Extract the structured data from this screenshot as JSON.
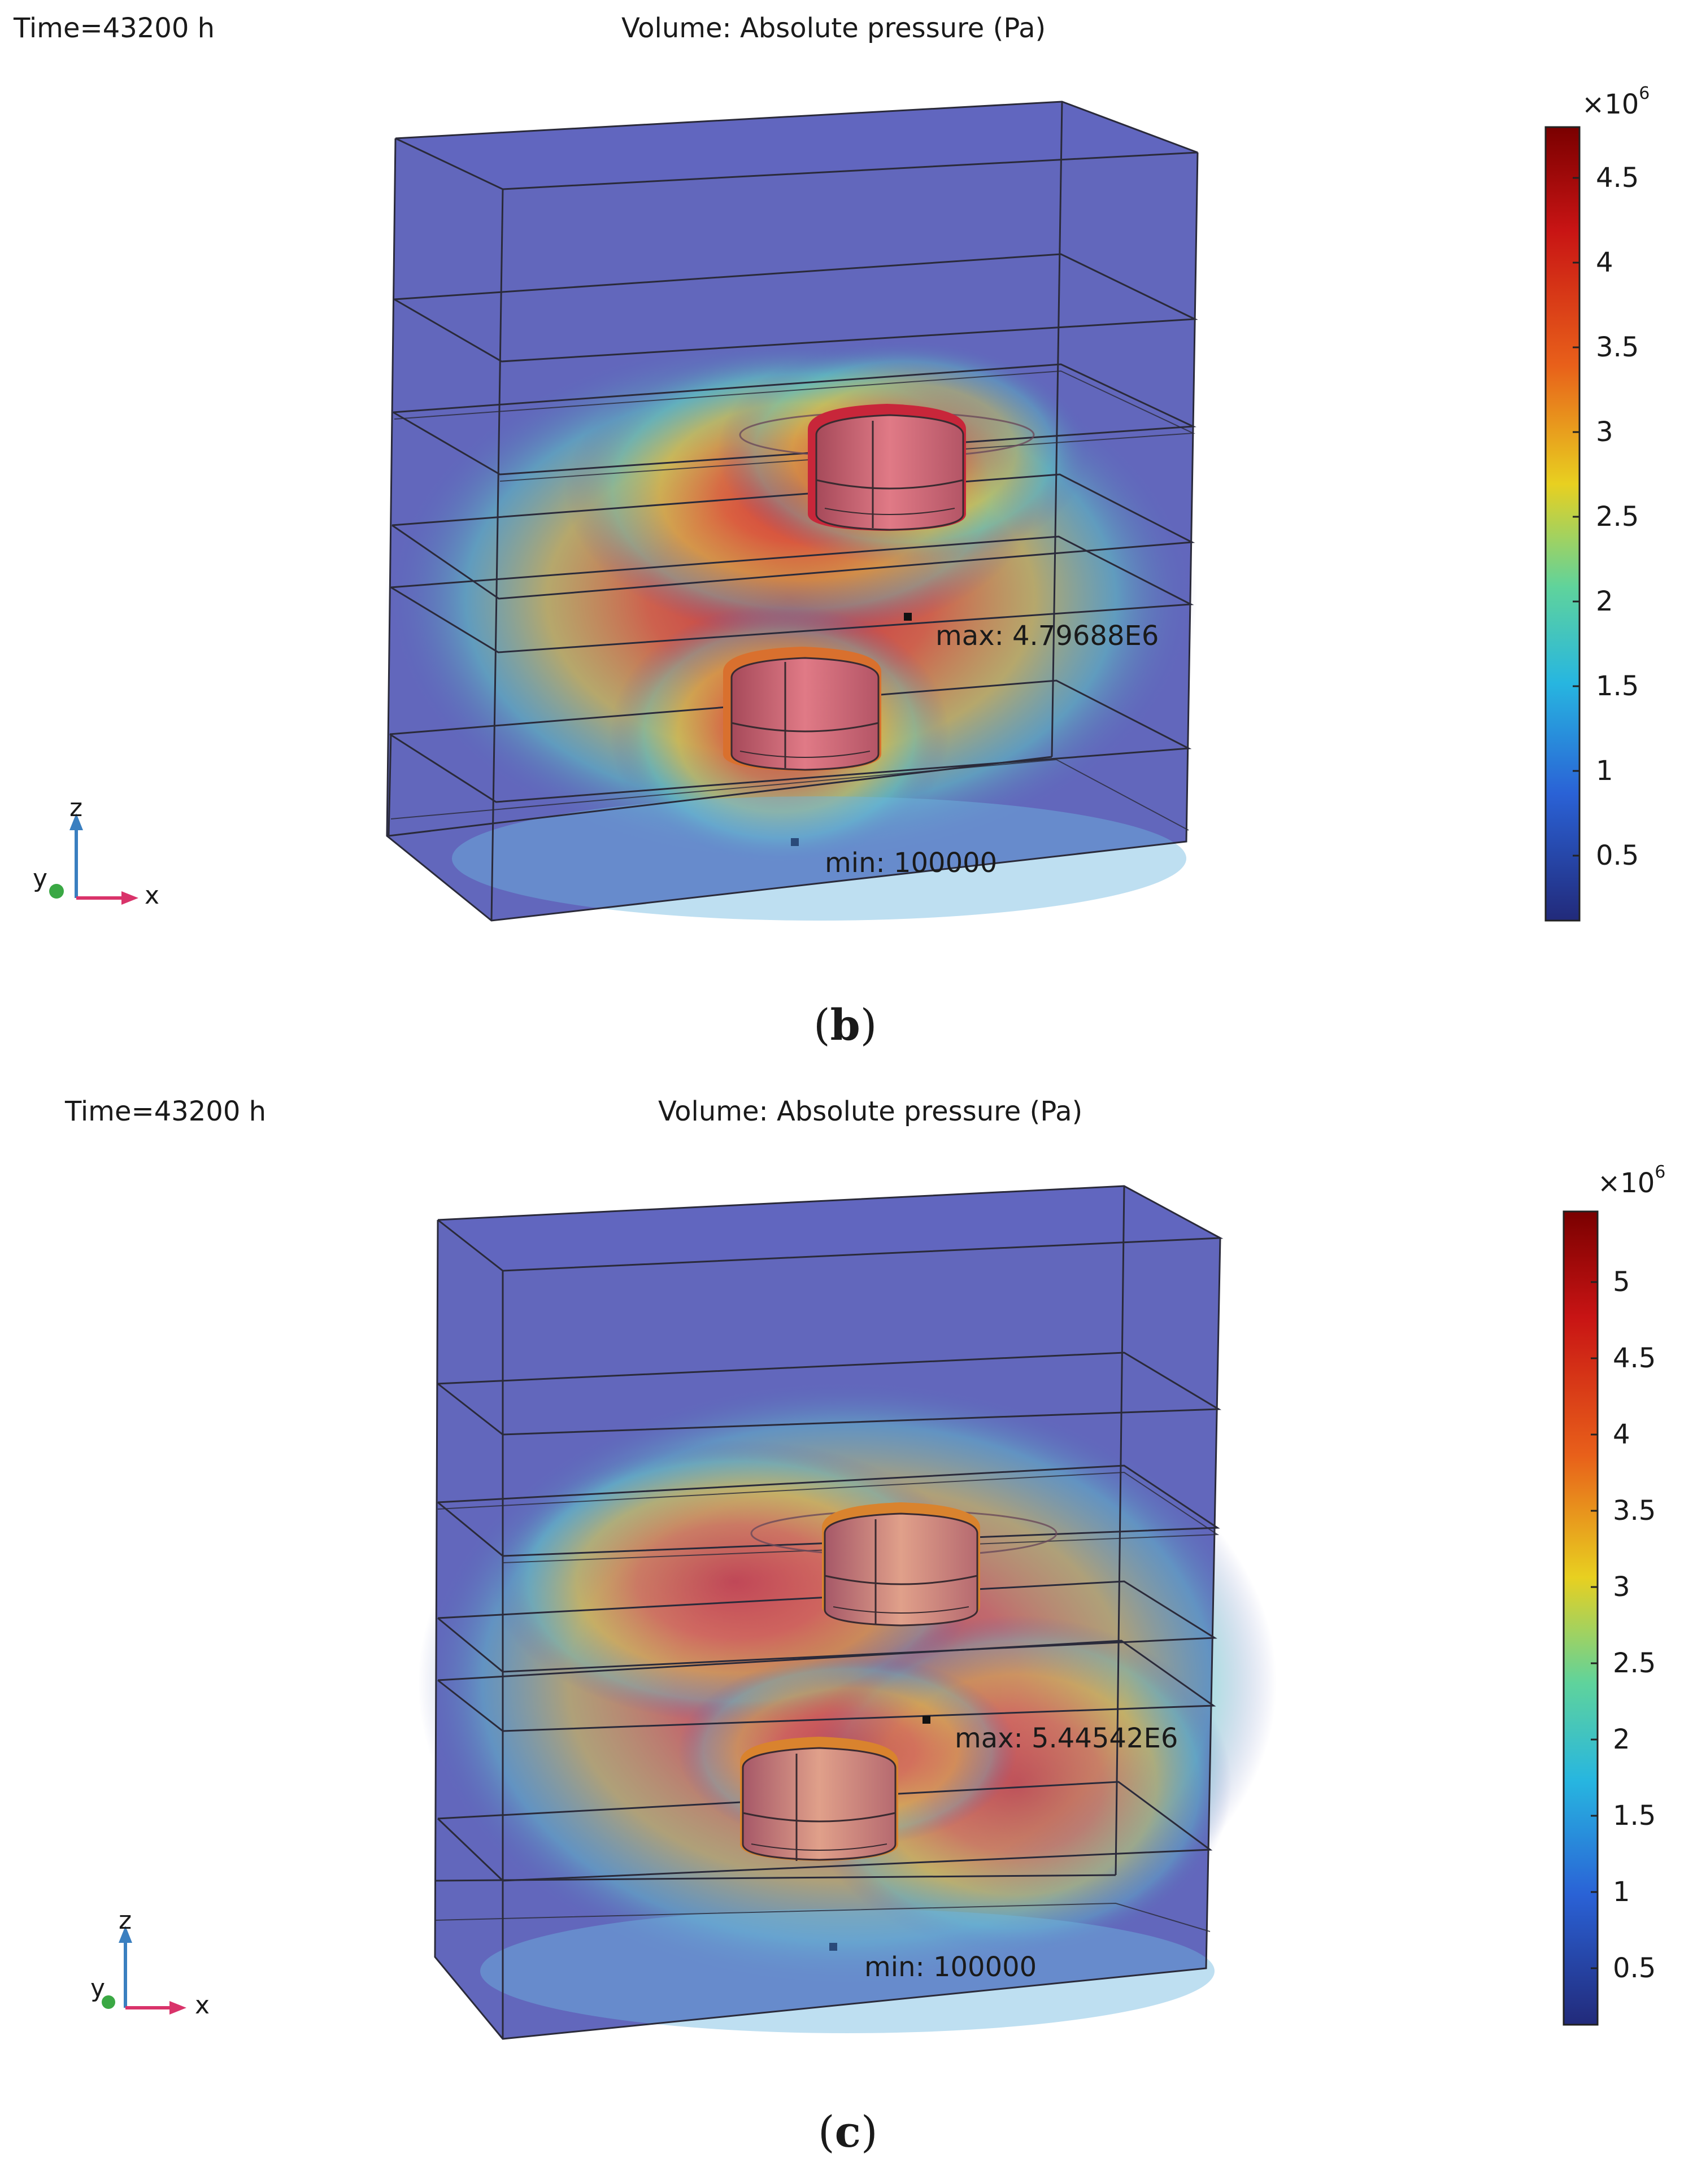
{
  "panels": [
    {
      "time_label": "Time=43200 h",
      "title": "Volume: Absolute pressure (Pa)",
      "colorbar_multiplier": "×10",
      "colorbar_exponent": "6",
      "colorbar_ticks": [
        "4.5",
        "4",
        "3.5",
        "3",
        "2.5",
        "2",
        "1.5",
        "1",
        "0.5"
      ],
      "max_label": "max: 4.79688E6",
      "min_label": "min: 100000",
      "axes": {
        "z": "z",
        "y": "y",
        "x": "x"
      },
      "caption": "b"
    },
    {
      "time_label": "Time=43200 h",
      "title": "Volume: Absolute pressure (Pa)",
      "colorbar_multiplier": "×10",
      "colorbar_exponent": "6",
      "colorbar_ticks": [
        "5",
        "4.5",
        "4",
        "3.5",
        "3",
        "2.5",
        "2",
        "1.5",
        "1",
        "0.5"
      ],
      "max_label": "max: 5.44542E6",
      "min_label": "min: 100000",
      "axes": {
        "z": "z",
        "y": "y",
        "x": "x"
      },
      "caption": "c"
    }
  ],
  "colors": {
    "colorbar_stops": [
      "#7a0000",
      "#c81414",
      "#e8601a",
      "#e8d020",
      "#5fd39c",
      "#27b6e0",
      "#2a62d6",
      "#222a7a"
    ],
    "volume_base": "#5a5fb8",
    "axis_z": "#3a7fc0",
    "axis_x": "#d9336a",
    "axis_y": "#3aa844"
  }
}
